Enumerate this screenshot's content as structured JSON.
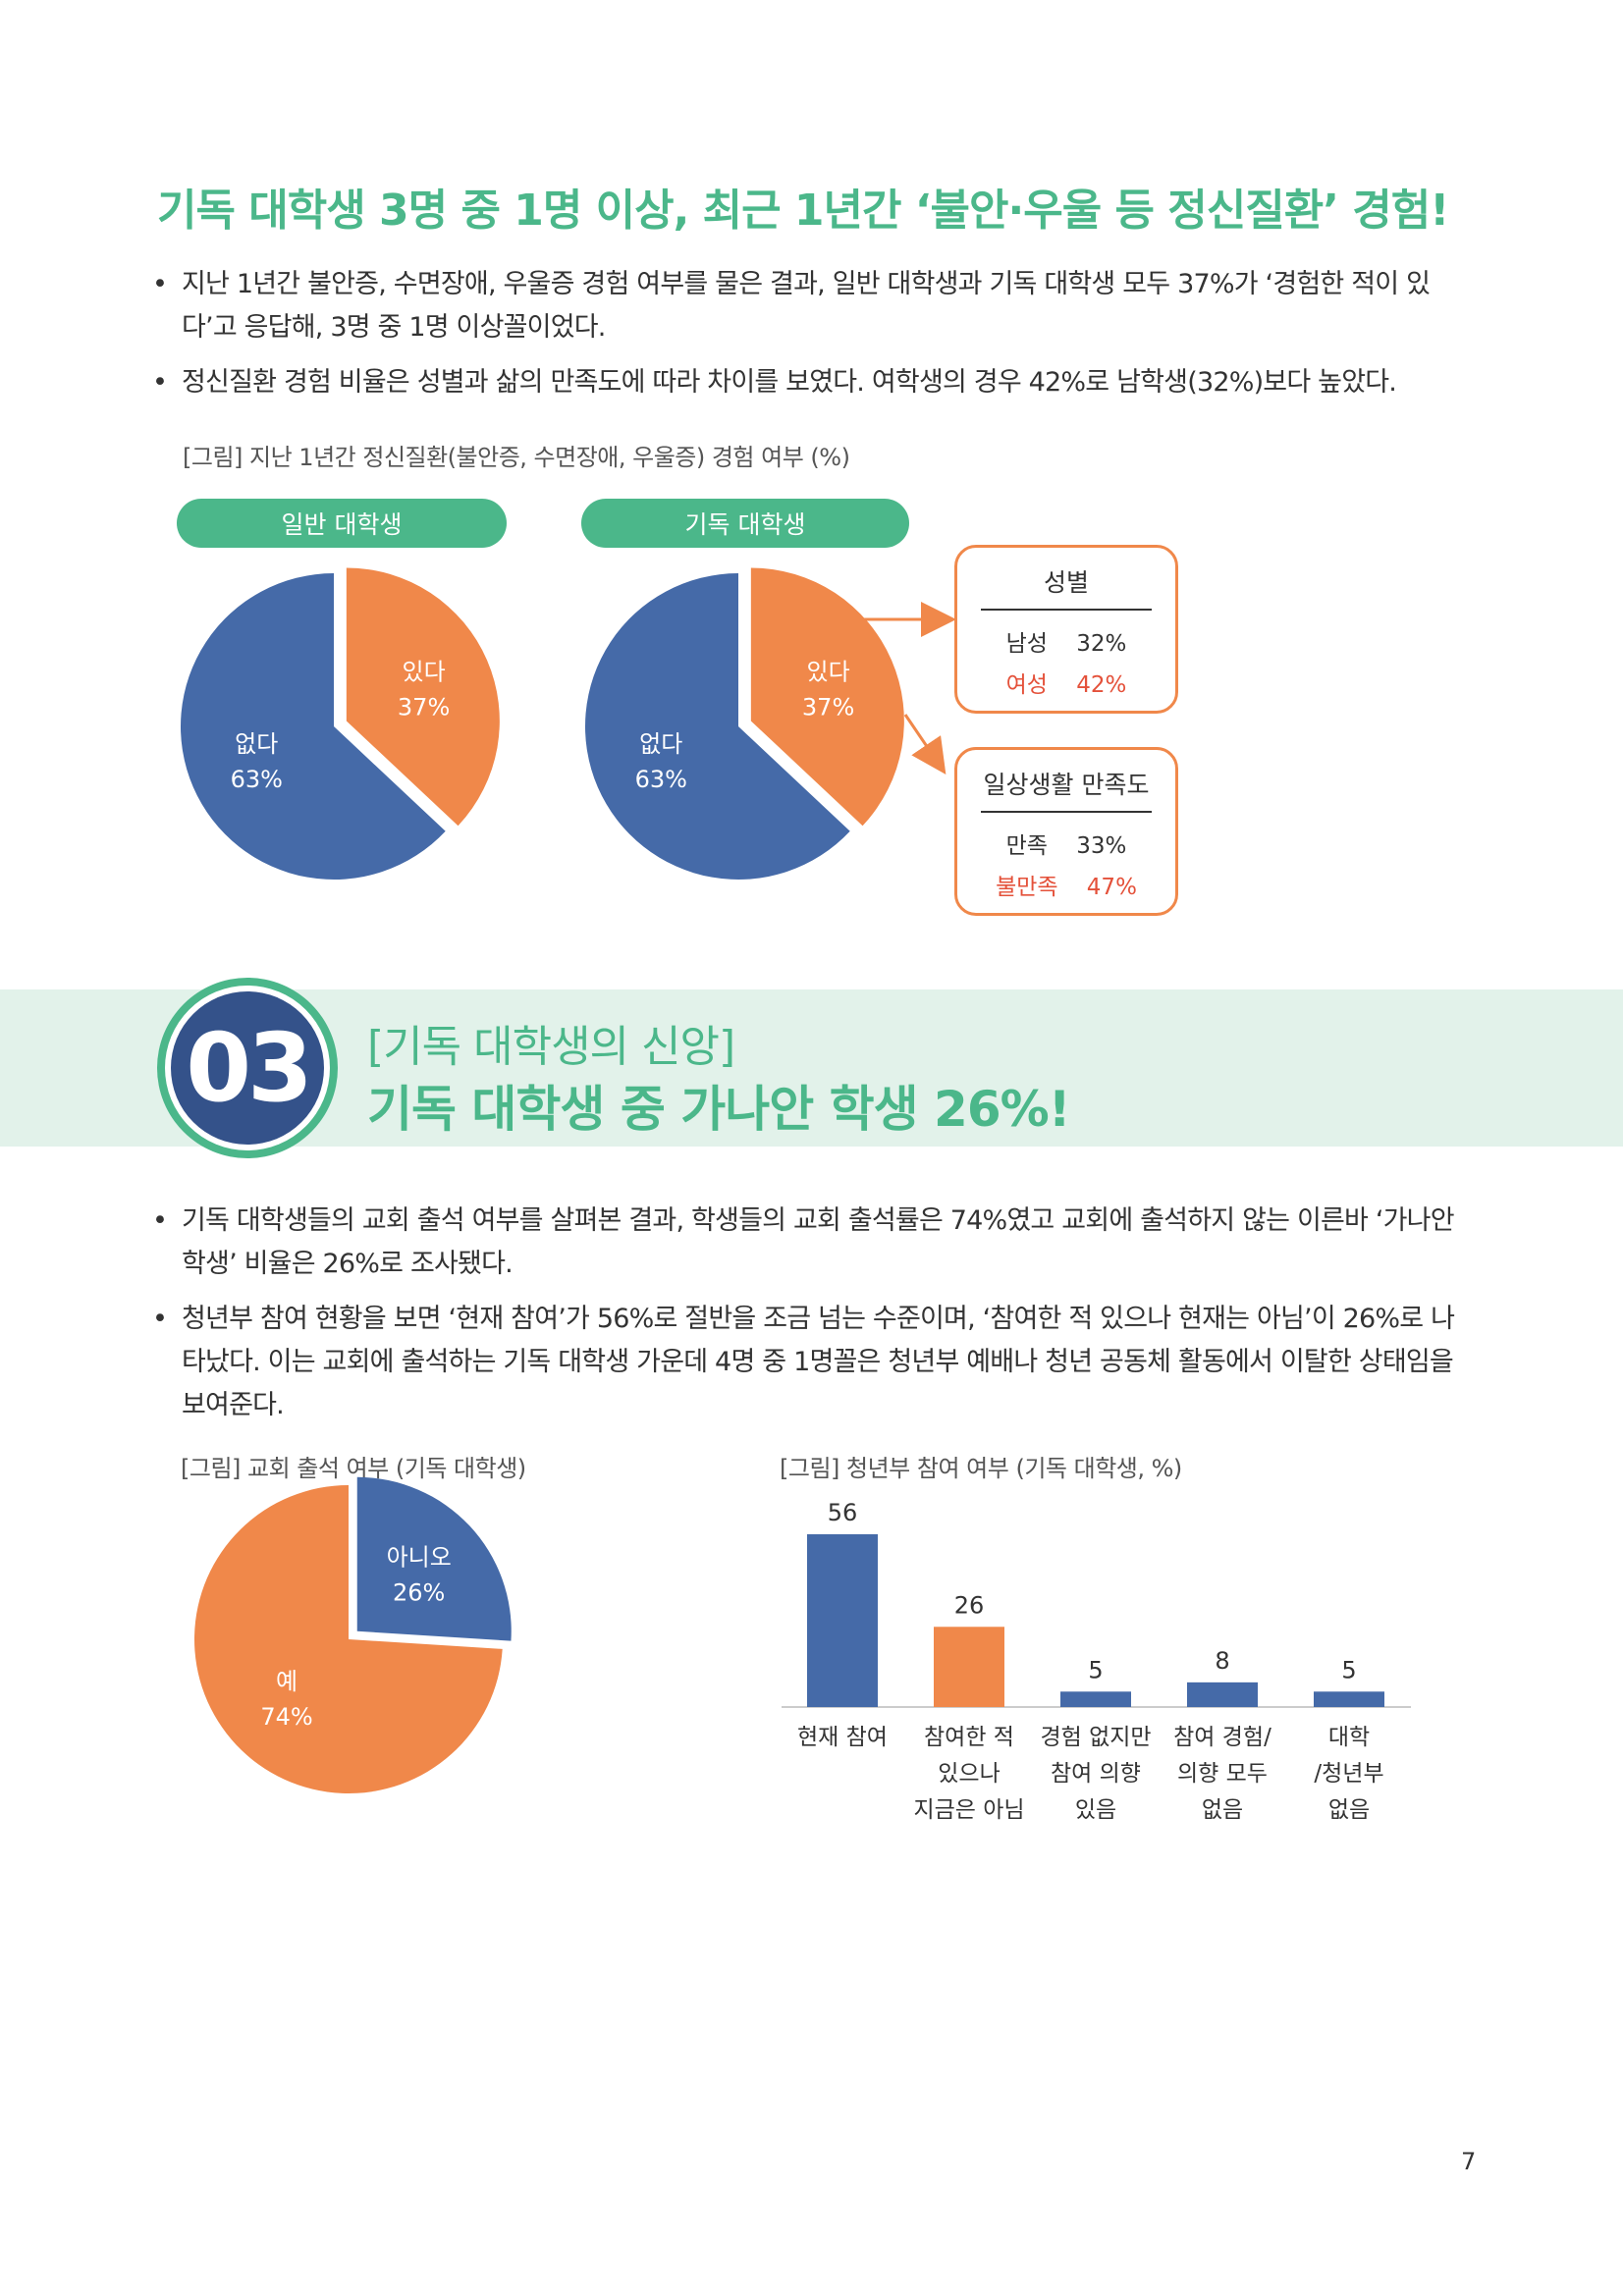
{
  "headline": "기독 대학생 3명 중 1명 이상, 최근 1년간 ‘불안·우울 등 정신질환’ 경험!",
  "bullets_top": [
    "지난 1년간 불안증, 수면장애, 우울증 경험 여부를 물은 결과, 일반 대학생과 기독 대학생 모두 37%가 ‘경험한 적이 있다’고 응답해, 3명 중 1명 이상꼴이었다.",
    "정신질환 경험 비율은 성별과 삶의 만족도에 따라 차이를 보였다. 여학생의 경우 42%로 남학생(32%)보다 높았다."
  ],
  "fig1": {
    "caption": "[그림] 지난 1년간 정신질환(불안증, 수면장애, 우울증) 경험 여부 (%)",
    "general_label": "일반 대학생",
    "christian_label": "기독 대학생",
    "gender_box": {
      "title": "성별",
      "male_label": "남성",
      "male_value": "32%",
      "female_label": "여성",
      "female_value": "42%"
    },
    "satisfaction_box": {
      "title": "일상생활 만족도",
      "satisfied_label": "만족",
      "satisfied_value": "33%",
      "unsatisfied_label": "불만족",
      "unsatisfied_value": "47%"
    }
  },
  "section": {
    "number": "03",
    "subtitle": "[기독 대학생의 신앙]",
    "title": "기독 대학생 중 가나안 학생 26%!"
  },
  "bullets_bottom": [
    "기독 대학생들의 교회 출석 여부를 살펴본 결과, 학생들의 교회 출석률은 74%였고 교회에 출석하지 않는 이른바 ‘가나안 학생’ 비율은 26%로 조사됐다.",
    "청년부 참여 현황을 보면 ‘현재 참여’가 56%로 절반을 조금 넘는 수준이며, ‘참여한 적 있으나 현재는 아님’이 26%로 나타났다. 이는 교회에 출석하는 기독 대학생 가운데 4명 중 1명꼴은 청년부 예배나 청년 공동체 활동에서 이탈한 상태임을 보여준다."
  ],
  "fig2": {
    "caption": "[그림] 교회 출석 여부 (기독 대학생)"
  },
  "fig3": {
    "caption": "[그림] 청년부 참여 여부 (기독 대학생, %)"
  },
  "colors": {
    "green": "#4bb78a",
    "blue": "#456aa8",
    "orange": "#f0884a",
    "navy": "#34528a",
    "red": "#e4513a"
  },
  "chart_data": [
    {
      "type": "pie",
      "title": "일반 대학생",
      "slices": [
        {
          "label": "있다",
          "value": 37,
          "display": "37%"
        },
        {
          "label": "없다",
          "value": 63,
          "display": "63%"
        }
      ]
    },
    {
      "type": "pie",
      "title": "기독 대학생",
      "slices": [
        {
          "label": "있다",
          "value": 37,
          "display": "37%"
        },
        {
          "label": "없다",
          "value": 63,
          "display": "63%"
        }
      ]
    },
    {
      "type": "pie",
      "title": "",
      "slices": [
        {
          "label": "아니오",
          "value": 26,
          "display": "26%"
        },
        {
          "label": "예",
          "value": 74,
          "display": "74%"
        }
      ]
    },
    {
      "type": "bar",
      "categories": [
        [
          "현재 참여"
        ],
        [
          "참여한 적",
          "있으나",
          "지금은 아님"
        ],
        [
          "경험 없지만",
          "참여 의향",
          "있음"
        ],
        [
          "참여 경험/",
          "의향 모두",
          "없음"
        ],
        [
          "대학",
          "/청년부",
          "없음"
        ]
      ],
      "values": [
        56,
        26,
        5,
        8,
        5
      ],
      "ylim": [
        0,
        56
      ]
    }
  ],
  "page_number": "7"
}
